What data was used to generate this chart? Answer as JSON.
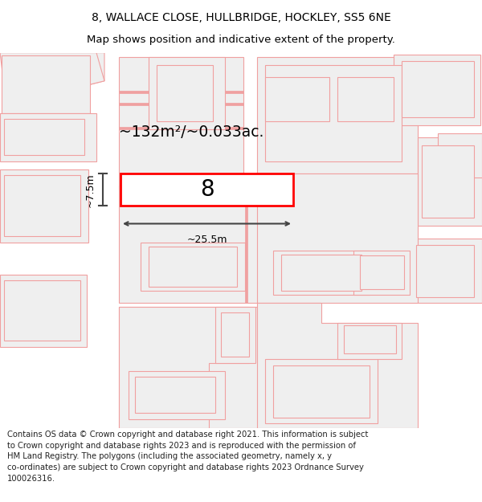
{
  "title_line1": "8, WALLACE CLOSE, HULLBRIDGE, HOCKLEY, SS5 6NE",
  "title_line2": "Map shows position and indicative extent of the property.",
  "footer_text": "Contains OS data © Crown copyright and database right 2021. This information is subject to Crown copyright and database rights 2023 and is reproduced with the permission of HM Land Registry. The polygons (including the associated geometry, namely x, y co-ordinates) are subject to Crown copyright and database rights 2023 Ordnance Survey 100026316.",
  "background_color": "#ffffff",
  "building_fill": "#efefef",
  "building_edge_color": "#f0a0a0",
  "building_lw": 0.8,
  "highlight_fill": "#ffffff",
  "highlight_edge_color": "#ff0000",
  "highlight_lw": 2.0,
  "area_label": "~132m²/~0.033ac.",
  "width_label": "~25.5m",
  "height_label": "~7.5m",
  "plot_number": "8",
  "title_fontsize": 10,
  "subtitle_fontsize": 9.5,
  "footer_fontsize": 7.2,
  "dim_arrow_color": "#444444",
  "dim_text_size": 9
}
